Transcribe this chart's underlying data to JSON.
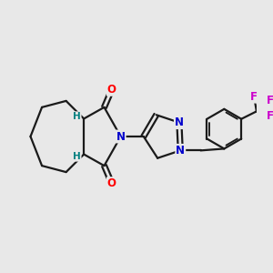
{
  "background_color": "#e8e8e8",
  "bond_color": "#1a1a1a",
  "bond_width": 1.6,
  "atom_colors": {
    "O": "#ff0000",
    "N": "#0000cc",
    "F": "#cc00cc",
    "H": "#008080",
    "C": "#1a1a1a"
  },
  "font_size_atoms": 8.5,
  "font_size_H": 7.5,
  "figsize": [
    3.0,
    3.0
  ],
  "dpi": 100
}
